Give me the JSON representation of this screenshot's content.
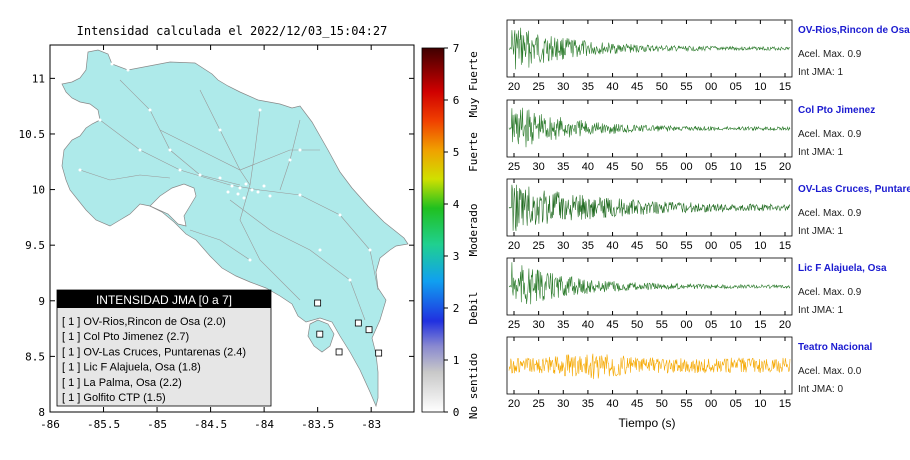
{
  "map": {
    "title": "Intensidad calculada el 2022/12/03_15:04:27",
    "x_ticks": [
      "-86",
      "-85.5",
      "-85",
      "-84.5",
      "-84",
      "-83.5",
      "-83"
    ],
    "y_ticks": [
      "11",
      "10.5",
      "10",
      "9.5",
      "9",
      "8.5",
      "8"
    ],
    "land_color": "#aeeaea",
    "legend": {
      "title": "INTENSIDAD JMA [0 a 7]",
      "entries": [
        "[ 1 ]  OV-Rios,Rincon de Osa (2.0)",
        "[ 1 ]  Col Pto Jimenez (2.7)",
        "[ 1 ]  OV-Las Cruces, Puntarenas (2.4)",
        "[ 1 ]  Lic F Alajuela, Osa (1.8)",
        "[ 1 ]  La Palma, Osa (2.2)",
        "[ 1 ]  Golfito CTP (1.5)"
      ]
    }
  },
  "colorbar": {
    "ticks": [
      "0",
      "1",
      "2",
      "3",
      "4",
      "5",
      "6",
      "7"
    ],
    "labels": [
      "No sentido",
      "Debil",
      "Moderado",
      "Fuerte",
      "Muy Fuerte"
    ]
  },
  "waveforms": [
    {
      "station": "OV-Rios,Rincon de Osa",
      "accel": "Acel. Max. 0.9",
      "int": "Int JMA: 1",
      "color": "#2a7a2a",
      "ticks": [
        "20",
        "25",
        "30",
        "35",
        "40",
        "45",
        "50",
        "55",
        "00",
        "05",
        "10",
        "15"
      ]
    },
    {
      "station": "Col Pto Jimenez",
      "accel": "Acel. Max. 0.9",
      "int": "Int JMA: 1",
      "color": "#2a7a2a",
      "ticks": [
        "25",
        "30",
        "35",
        "40",
        "45",
        "50",
        "55",
        "00",
        "05",
        "10",
        "15",
        "20"
      ]
    },
    {
      "station": "OV-Las Cruces, Puntarenas",
      "accel": "Acel. Max. 0.9",
      "int": "Int JMA: 1",
      "color": "#1f6a1f",
      "ticks": [
        "20",
        "25",
        "30",
        "35",
        "40",
        "45",
        "50",
        "55",
        "00",
        "05",
        "10",
        "15"
      ]
    },
    {
      "station": "Lic F Alajuela, Osa",
      "accel": "Acel. Max. 0.9",
      "int": "Int JMA: 1",
      "color": "#2a7a2a",
      "ticks": [
        "25",
        "30",
        "35",
        "40",
        "45",
        "50",
        "55",
        "00",
        "05",
        "10",
        "15",
        "20"
      ]
    },
    {
      "station": "Teatro Nacional",
      "accel": "Acel. Max. 0.0",
      "int": "Int JMA: 0",
      "color": "#f5a800",
      "ticks": [
        "20",
        "25",
        "30",
        "35",
        "40",
        "45",
        "50",
        "55",
        "00",
        "05",
        "10",
        "15"
      ]
    }
  ],
  "time_label": "Tiempo (s)",
  "chart_data": {
    "type": "scatter",
    "title": "Intensidad calculada el 2022/12/03_15:04:27",
    "xlabel": "",
    "ylabel": "",
    "xlim": [
      -86,
      -82.6
    ],
    "ylim": [
      8,
      11.3
    ],
    "series": [
      {
        "name": "OV-Rios,Rincon de Osa (2.0)",
        "x": [
          -83.48
        ],
        "y": [
          8.7
        ]
      },
      {
        "name": "Col Pto Jimenez (2.7)",
        "x": [
          -83.3
        ],
        "y": [
          8.54
        ]
      },
      {
        "name": "OV-Las Cruces, Puntarenas (2.4)",
        "x": [
          -83.12
        ],
        "y": [
          8.8
        ]
      },
      {
        "name": "Lic F Alajuela, Osa (1.8)",
        "x": [
          -83.5
        ],
        "y": [
          8.98
        ]
      },
      {
        "name": "La Palma, Osa (2.2)",
        "x": [
          -83.02
        ],
        "y": [
          8.74
        ]
      },
      {
        "name": "Golfito CTP (1.5)",
        "x": [
          -82.93
        ],
        "y": [
          8.53
        ]
      }
    ]
  }
}
